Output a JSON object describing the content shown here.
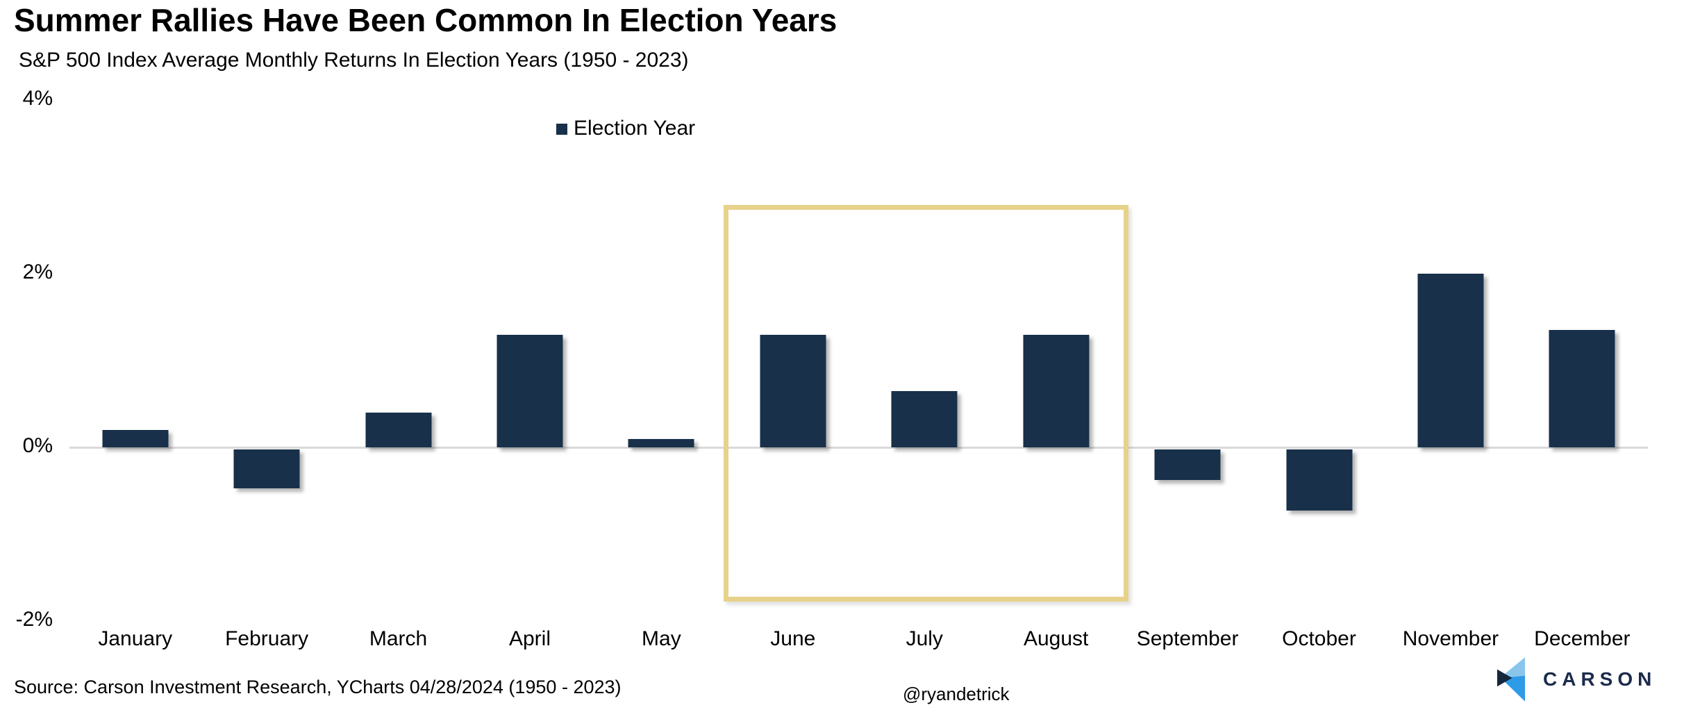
{
  "title": "Summer Rallies Have Been Common In Election Years",
  "subtitle": "S&P 500 Index Average Monthly Returns In Election Years (1950 - 2023)",
  "legend": {
    "label": "Election Year",
    "swatch_color": "#18304a"
  },
  "chart_data": {
    "type": "bar",
    "title": "Summer Rallies Have Been Common In Election Years",
    "subtitle": "S&P 500 Index Average Monthly Returns In Election Years (1950 - 2023)",
    "series_name": "Election Year",
    "categories": [
      "January",
      "February",
      "March",
      "April",
      "May",
      "June",
      "July",
      "August",
      "September",
      "October",
      "November",
      "December"
    ],
    "values": [
      0.2,
      -0.45,
      0.4,
      1.3,
      0.1,
      1.3,
      0.65,
      1.3,
      -0.35,
      -0.7,
      2.0,
      1.35
    ],
    "unit": "%",
    "xlabel": "",
    "ylabel": "",
    "ylim": [
      -2,
      4
    ],
    "y_ticks": [
      {
        "label": "4%",
        "value": 4
      },
      {
        "label": "2%",
        "value": 2
      },
      {
        "label": "0%",
        "value": 0
      },
      {
        "label": "-2%",
        "value": -2
      }
    ],
    "grid": "zero-line-only",
    "legend_position": "top-center",
    "bar_color": "#18304a",
    "highlight_box": {
      "months": [
        "June",
        "July",
        "August"
      ],
      "border_color": "#e6d28a"
    }
  },
  "footer": {
    "source": "Source: Carson Investment Research, YCharts 04/28/2024 (1950 - 2023)",
    "handle": "@ryandetrick",
    "logo_text": "CARSON",
    "logo_colors": {
      "light_blue": "#8ac6eb",
      "bright_blue": "#2e9be6",
      "dark_navy": "#14273c",
      "text_navy": "#1b2b4c"
    }
  }
}
